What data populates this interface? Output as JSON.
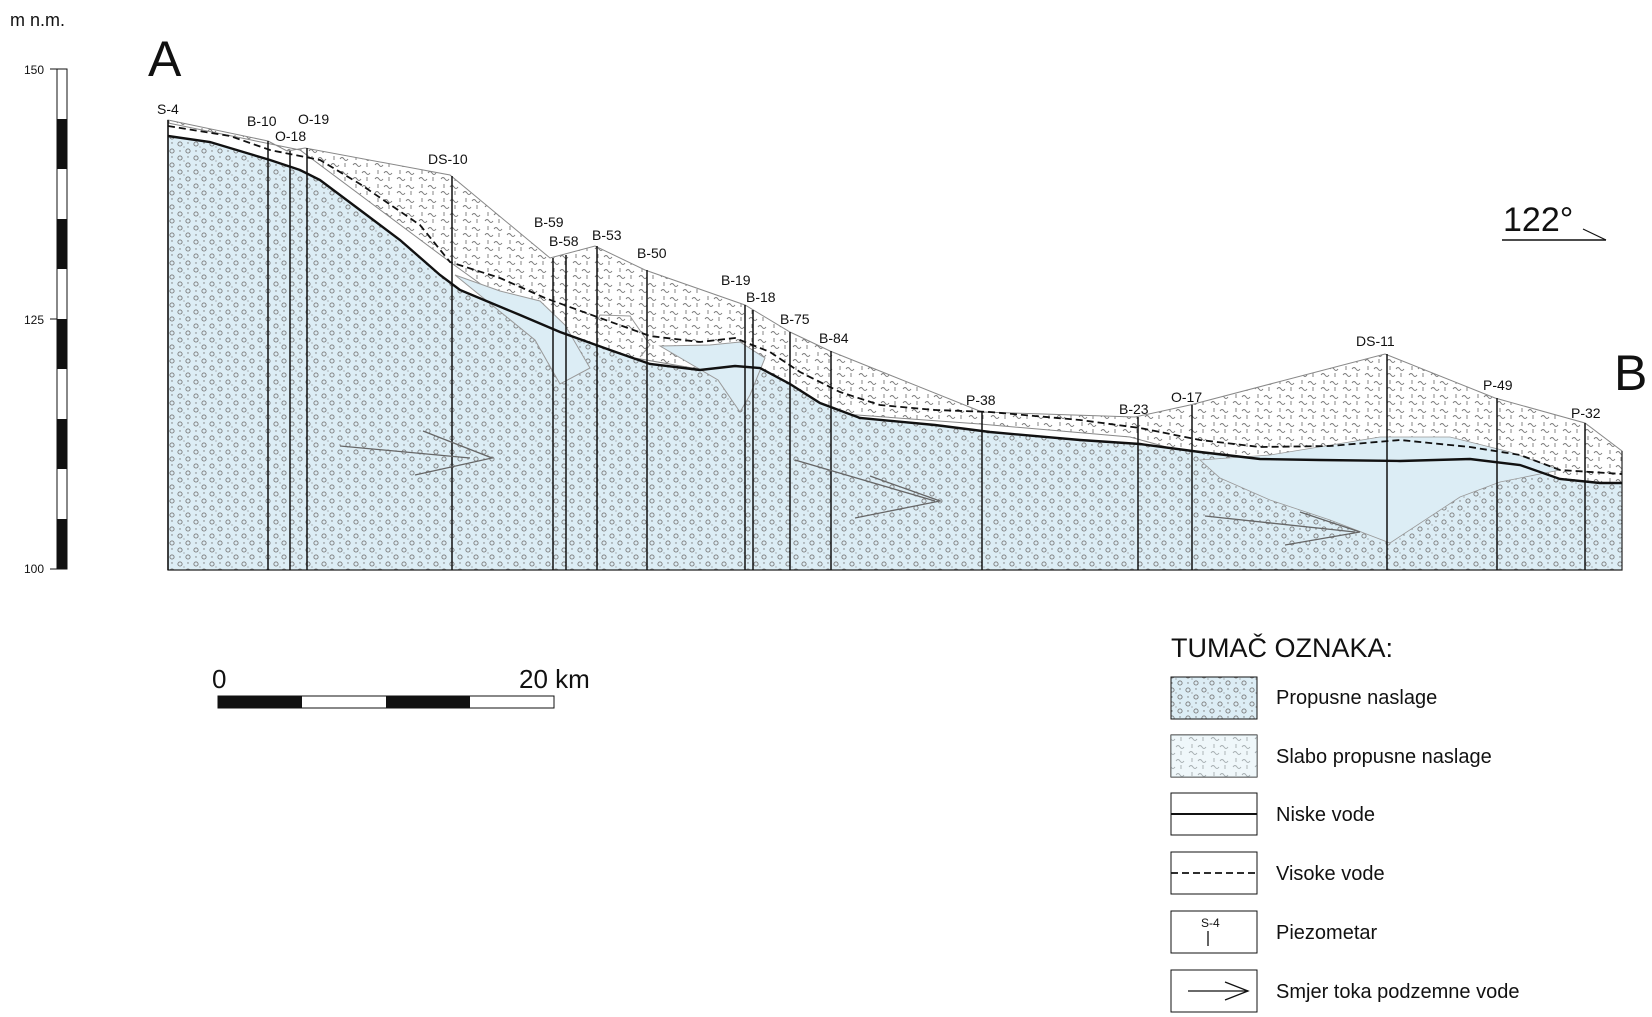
{
  "vertical_axis": {
    "unit_label": "m n.m.",
    "ticks": [
      {
        "label": "150",
        "value": 150
      },
      {
        "label": "125",
        "value": 125
      },
      {
        "label": "100",
        "value": 100
      }
    ]
  },
  "section_endpoints": {
    "start": "A",
    "end": "B"
  },
  "orientation": {
    "label": "122°"
  },
  "scale_bar": {
    "start_label": "0",
    "end_label": "20 km"
  },
  "boreholes": [
    {
      "id": "S-4"
    },
    {
      "id": "B-10"
    },
    {
      "id": "O-18"
    },
    {
      "id": "O-19"
    },
    {
      "id": "DS-10"
    },
    {
      "id": "B-59"
    },
    {
      "id": "B-58"
    },
    {
      "id": "B-53"
    },
    {
      "id": "B-50"
    },
    {
      "id": "B-19"
    },
    {
      "id": "B-18"
    },
    {
      "id": "B-75"
    },
    {
      "id": "B-84"
    },
    {
      "id": "P-38"
    },
    {
      "id": "B-23"
    },
    {
      "id": "O-17"
    },
    {
      "id": "DS-11"
    },
    {
      "id": "P-49"
    },
    {
      "id": "P-32"
    }
  ],
  "legend": {
    "title": "TUMAČ OZNAKA:",
    "items": [
      {
        "key": "permeable",
        "label": "Propusne naslage",
        "icon": "permeable-pattern-icon"
      },
      {
        "key": "semi_permeable",
        "label": "Slabo propusne naslage",
        "icon": "semi-permeable-pattern-icon"
      },
      {
        "key": "low_water",
        "label": "Niske vode",
        "icon": "solid-line-icon"
      },
      {
        "key": "high_water",
        "label": "Visoke vode",
        "icon": "dashed-line-icon"
      },
      {
        "key": "piezometer",
        "label": "Piezometar",
        "icon": "piezometer-icon",
        "sample": "S-4"
      },
      {
        "key": "flow",
        "label": "Smjer toka podzemne vode",
        "icon": "arrow-icon"
      }
    ]
  },
  "colors": {
    "aquifer_fill": "#dcedf5",
    "semi_permeable_fill": "#ffffff",
    "line": "#111111",
    "thin_line": "#888888"
  }
}
